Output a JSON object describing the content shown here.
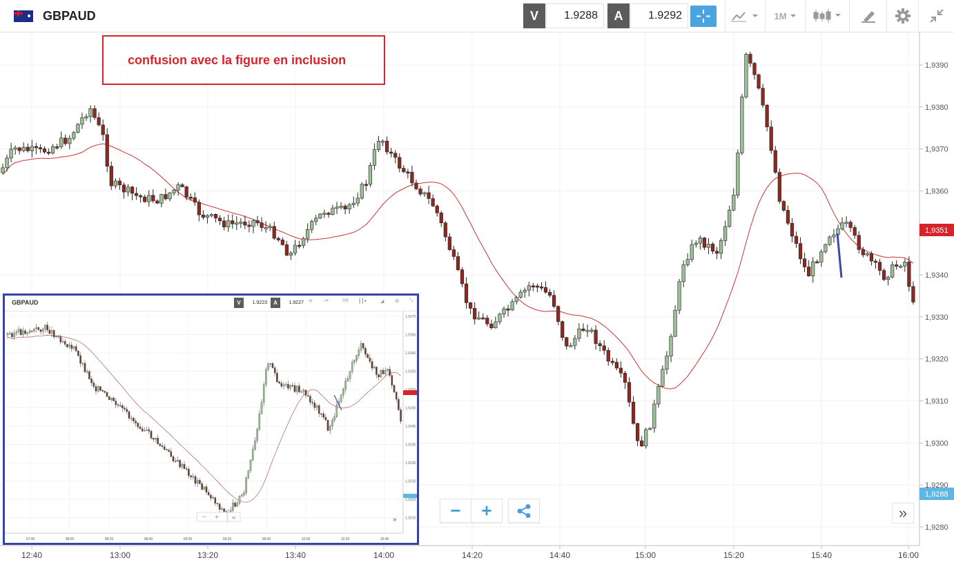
{
  "header": {
    "symbol": "GBPAUD",
    "bid_letter": "V",
    "bid_price": "1.9288",
    "ask_letter": "A",
    "ask_price": "1.9292",
    "timeframe": "1M",
    "icons": [
      "flag-gb-au-icon",
      "crosshair-icon",
      "chart-type-icon",
      "chevron-down-icon",
      "candlestick-icon",
      "draw-icon",
      "gear-icon",
      "collapse-icon"
    ]
  },
  "annotation": {
    "text": "confusion avec la figure en inclusion"
  },
  "controls": {
    "zoom_out": "−",
    "zoom_in": "+",
    "expand": "»"
  },
  "chart_data": [
    {
      "type": "candlestick",
      "x_ticks": [
        "12:40",
        "13:00",
        "13:20",
        "13:40",
        "14:00",
        "14:20",
        "14:40",
        "15:00",
        "15:20",
        "15:40",
        "16:00"
      ],
      "y_ticks": [
        "1,9390",
        "1,9380",
        "1,9370",
        "1,9360",
        "1,9340",
        "1,9330",
        "1,9320",
        "1,9310",
        "1,9300",
        "1,9290",
        "1,9280"
      ],
      "ylim": [
        1.9276,
        1.9398
      ],
      "current_price_label": "1,9351",
      "bid_price_label": "1,9288",
      "colors": {
        "up": "#9dbf98",
        "down": "#8c2a20",
        "ma": "#cc3333",
        "price_tag": "#d9232b",
        "bid_tag": "#5fb6e4"
      },
      "moving_average": true,
      "grid": true
    },
    {
      "type": "candlestick",
      "title": "GBPAUD",
      "bid_letter": "V",
      "bid_price": "1.9223",
      "ask_letter": "A",
      "ask_price": "1.9227",
      "timeframe": "1M",
      "x_ticks": [
        "07:40",
        "08:00",
        "08:20",
        "08:40",
        "09:00",
        "09:20",
        "09:40",
        "10:00",
        "10:20",
        "10:40"
      ],
      "y_ticks": [
        "1,9270",
        "1,9265",
        "1,9260",
        "1,9255",
        "1,9250",
        "1,9245",
        "1,9240",
        "1,9235",
        "1,9230",
        "1,9225",
        "1,9220",
        "1,9215"
      ]
    }
  ]
}
